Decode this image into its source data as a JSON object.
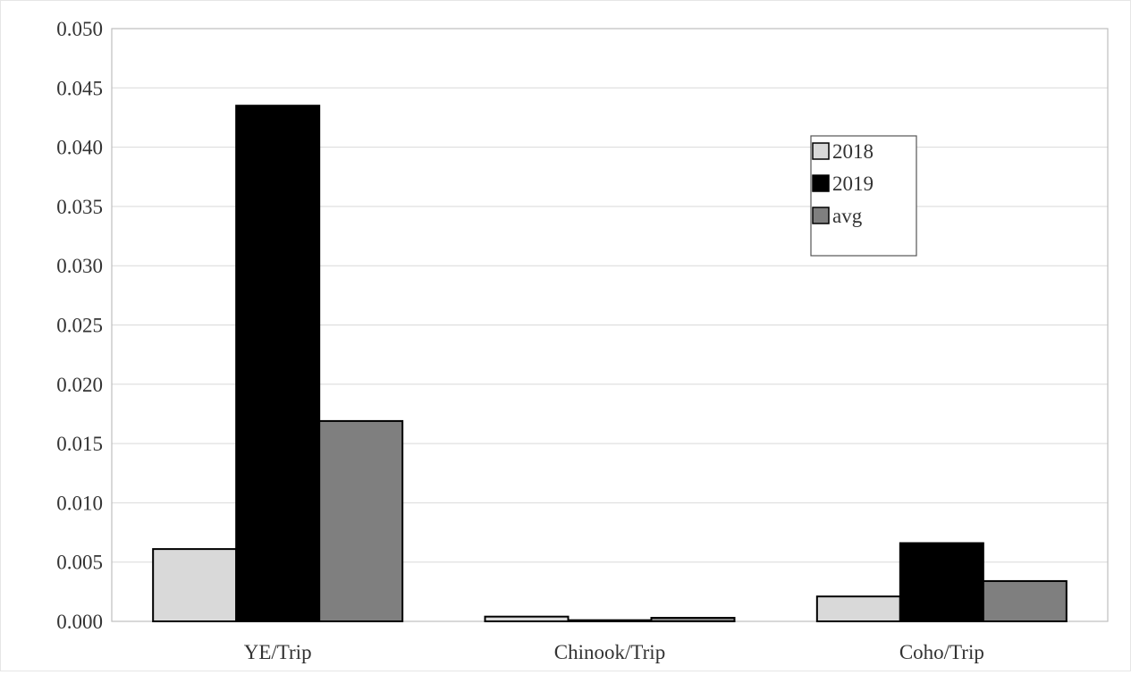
{
  "chart_data": {
    "type": "bar",
    "title": "",
    "xlabel": "",
    "ylabel": "",
    "categories": [
      "YE/Trip",
      "Chinook/Trip",
      "Coho/Trip"
    ],
    "series": [
      {
        "name": "2018",
        "values": [
          0.0061,
          0.0004,
          0.0021
        ],
        "color": "#d9d9d9"
      },
      {
        "name": "2019",
        "values": [
          0.0435,
          0.0001,
          0.0066
        ],
        "color": "#000000"
      },
      {
        "name": "avg",
        "values": [
          0.0169,
          0.0003,
          0.0034
        ],
        "color": "#7f7f7f"
      }
    ],
    "ylim": [
      0,
      0.05
    ],
    "yticks": [
      "0.000",
      "0.005",
      "0.010",
      "0.015",
      "0.020",
      "0.025",
      "0.030",
      "0.035",
      "0.040",
      "0.045",
      "0.050"
    ],
    "grid": true,
    "legend_position": "top-right"
  }
}
